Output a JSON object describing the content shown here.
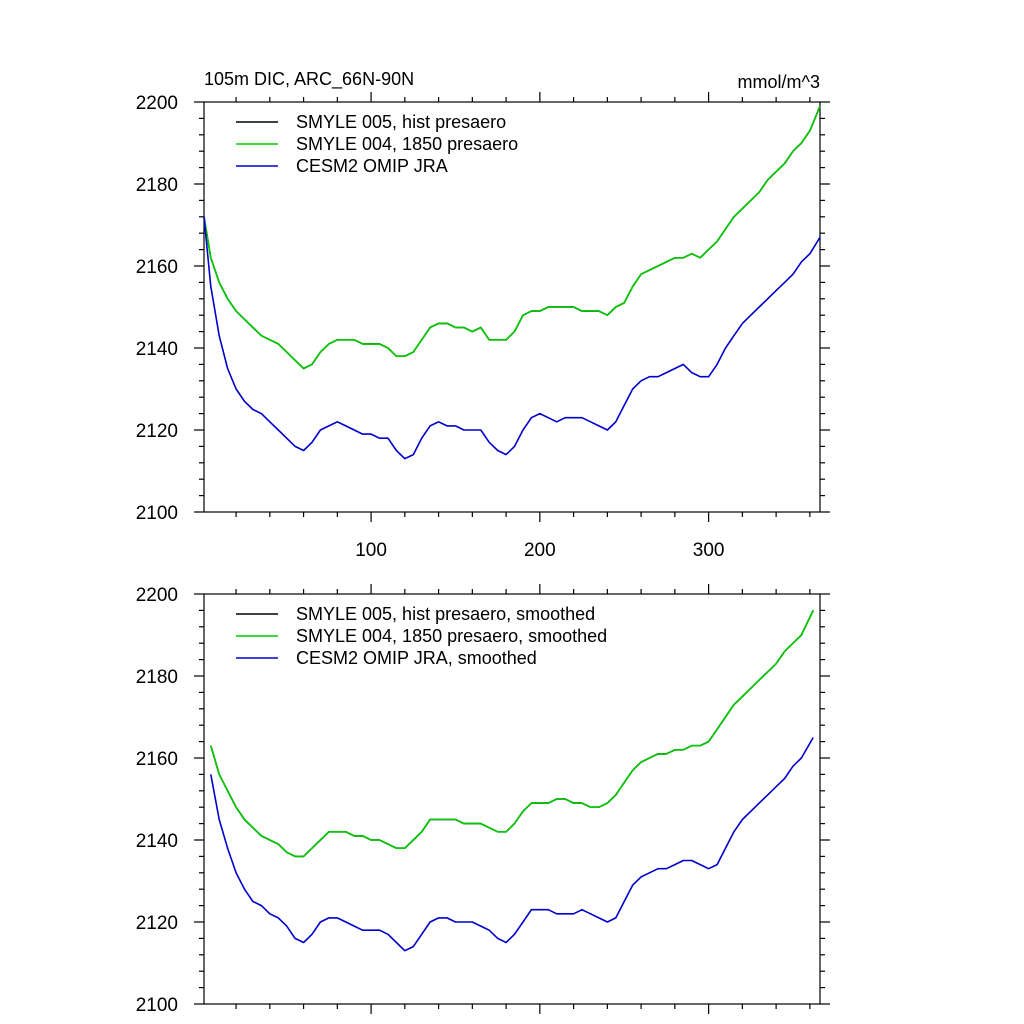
{
  "chart_data": [
    {
      "type": "line",
      "title_left": "105m DIC, ARC_66N-90N",
      "title_right": "mmol/m^3",
      "xlabel": "",
      "ylabel": "",
      "xlim": [
        1,
        366
      ],
      "ylim": [
        2100,
        2200
      ],
      "xticks": [
        100,
        200,
        300
      ],
      "xtick_labels": [
        "100",
        "200",
        "300"
      ],
      "yticks": [
        2100,
        2120,
        2140,
        2160,
        2180,
        2200
      ],
      "ytick_labels": [
        "2100",
        "2120",
        "2140",
        "2160",
        "2180",
        "2200"
      ],
      "legend_position": "top-left",
      "series": [
        {
          "name": "SMYLE 005, hist presaero",
          "color": "#000000",
          "x": [
            1,
            5,
            10,
            15,
            20,
            25,
            30,
            35,
            40,
            45,
            50,
            55,
            60,
            65,
            70,
            75,
            80,
            85,
            90,
            95,
            100,
            105,
            110,
            115,
            120,
            125,
            130,
            135,
            140,
            145,
            150,
            155,
            160,
            165,
            170,
            175,
            180,
            185,
            190,
            195,
            200,
            205,
            210,
            215,
            220,
            225,
            230,
            235,
            240,
            245,
            250,
            255,
            260,
            265,
            270,
            275,
            280,
            285,
            290,
            295,
            300,
            305,
            310,
            315,
            320,
            325,
            330,
            335,
            340,
            345,
            350,
            355,
            360,
            366
          ],
          "values": [
            2172,
            2162,
            2156,
            2152,
            2149,
            2147,
            2145,
            2143,
            2142,
            2141,
            2139,
            2137,
            2135,
            2136,
            2139,
            2141,
            2142,
            2142,
            2142,
            2141,
            2141,
            2141,
            2140,
            2138,
            2138,
            2139,
            2142,
            2145,
            2146,
            2146,
            2145,
            2145,
            2144,
            2145,
            2142,
            2142,
            2142,
            2144,
            2148,
            2149,
            2149,
            2150,
            2150,
            2150,
            2150,
            2149,
            2149,
            2149,
            2148,
            2150,
            2151,
            2155,
            2158,
            2159,
            2160,
            2161,
            2162,
            2162,
            2163,
            2162,
            2164,
            2166,
            2169,
            2172,
            2174,
            2176,
            2178,
            2181,
            2183,
            2185,
            2188,
            2190,
            2193,
            2199
          ]
        },
        {
          "name": "SMYLE 004, 1850 presaero",
          "color": "#00cc00",
          "x": [
            1,
            5,
            10,
            15,
            20,
            25,
            30,
            35,
            40,
            45,
            50,
            55,
            60,
            65,
            70,
            75,
            80,
            85,
            90,
            95,
            100,
            105,
            110,
            115,
            120,
            125,
            130,
            135,
            140,
            145,
            150,
            155,
            160,
            165,
            170,
            175,
            180,
            185,
            190,
            195,
            200,
            205,
            210,
            215,
            220,
            225,
            230,
            235,
            240,
            245,
            250,
            255,
            260,
            265,
            270,
            275,
            280,
            285,
            290,
            295,
            300,
            305,
            310,
            315,
            320,
            325,
            330,
            335,
            340,
            345,
            350,
            355,
            360,
            366
          ],
          "values": [
            2172,
            2162,
            2156,
            2152,
            2149,
            2147,
            2145,
            2143,
            2142,
            2141,
            2139,
            2137,
            2135,
            2136,
            2139,
            2141,
            2142,
            2142,
            2142,
            2141,
            2141,
            2141,
            2140,
            2138,
            2138,
            2139,
            2142,
            2145,
            2146,
            2146,
            2145,
            2145,
            2144,
            2145,
            2142,
            2142,
            2142,
            2144,
            2148,
            2149,
            2149,
            2150,
            2150,
            2150,
            2150,
            2149,
            2149,
            2149,
            2148,
            2150,
            2151,
            2155,
            2158,
            2159,
            2160,
            2161,
            2162,
            2162,
            2163,
            2162,
            2164,
            2166,
            2169,
            2172,
            2174,
            2176,
            2178,
            2181,
            2183,
            2185,
            2188,
            2190,
            2193,
            2199
          ]
        },
        {
          "name": "CESM2 OMIP JRA",
          "color": "#0000cc",
          "x": [
            1,
            5,
            10,
            15,
            20,
            25,
            30,
            35,
            40,
            45,
            50,
            55,
            60,
            65,
            70,
            75,
            80,
            85,
            90,
            95,
            100,
            105,
            110,
            115,
            120,
            125,
            130,
            135,
            140,
            145,
            150,
            155,
            160,
            165,
            170,
            175,
            180,
            185,
            190,
            195,
            200,
            205,
            210,
            215,
            220,
            225,
            230,
            235,
            240,
            245,
            250,
            255,
            260,
            265,
            270,
            275,
            280,
            285,
            290,
            295,
            300,
            305,
            310,
            315,
            320,
            325,
            330,
            335,
            340,
            345,
            350,
            355,
            360,
            366
          ],
          "values": [
            2172,
            2155,
            2143,
            2135,
            2130,
            2127,
            2125,
            2124,
            2122,
            2120,
            2118,
            2116,
            2115,
            2117,
            2120,
            2121,
            2122,
            2121,
            2120,
            2119,
            2119,
            2118,
            2118,
            2115,
            2113,
            2114,
            2118,
            2121,
            2122,
            2121,
            2121,
            2120,
            2120,
            2120,
            2117,
            2115,
            2114,
            2116,
            2120,
            2123,
            2124,
            2123,
            2122,
            2123,
            2123,
            2123,
            2122,
            2121,
            2120,
            2122,
            2126,
            2130,
            2132,
            2133,
            2133,
            2134,
            2135,
            2136,
            2134,
            2133,
            2133,
            2136,
            2140,
            2143,
            2146,
            2148,
            2150,
            2152,
            2154,
            2156,
            2158,
            2161,
            2163,
            2167
          ]
        }
      ]
    },
    {
      "type": "line",
      "title_left": "",
      "title_right": "",
      "xlabel": "",
      "ylabel": "",
      "xlim": [
        1,
        366
      ],
      "ylim": [
        2100,
        2200
      ],
      "xticks": [
        100,
        200,
        300
      ],
      "xtick_labels": [],
      "yticks": [
        2100,
        2120,
        2140,
        2160,
        2180,
        2200
      ],
      "ytick_labels": [
        "2100",
        "2120",
        "2140",
        "2160",
        "2180",
        "2200"
      ],
      "legend_position": "top-left",
      "series": [
        {
          "name": "SMYLE 005, hist presaero, smoothed",
          "color": "#000000",
          "x": [
            5,
            10,
            15,
            20,
            25,
            30,
            35,
            40,
            45,
            50,
            55,
            60,
            65,
            70,
            75,
            80,
            85,
            90,
            95,
            100,
            105,
            110,
            115,
            120,
            125,
            130,
            135,
            140,
            145,
            150,
            155,
            160,
            165,
            170,
            175,
            180,
            185,
            190,
            195,
            200,
            205,
            210,
            215,
            220,
            225,
            230,
            235,
            240,
            245,
            250,
            255,
            260,
            265,
            270,
            275,
            280,
            285,
            290,
            295,
            300,
            305,
            310,
            315,
            320,
            325,
            330,
            335,
            340,
            345,
            350,
            355,
            362
          ],
          "values": [
            2163,
            2156,
            2152,
            2148,
            2145,
            2143,
            2141,
            2140,
            2139,
            2137,
            2136,
            2136,
            2138,
            2140,
            2142,
            2142,
            2142,
            2141,
            2141,
            2140,
            2140,
            2139,
            2138,
            2138,
            2140,
            2142,
            2145,
            2145,
            2145,
            2145,
            2144,
            2144,
            2144,
            2143,
            2142,
            2142,
            2144,
            2147,
            2149,
            2149,
            2149,
            2150,
            2150,
            2149,
            2149,
            2148,
            2148,
            2149,
            2151,
            2154,
            2157,
            2159,
            2160,
            2161,
            2161,
            2162,
            2162,
            2163,
            2163,
            2164,
            2167,
            2170,
            2173,
            2175,
            2177,
            2179,
            2181,
            2183,
            2186,
            2188,
            2190,
            2196
          ]
        },
        {
          "name": "SMYLE 004, 1850 presaero, smoothed",
          "color": "#00cc00",
          "x": [
            5,
            10,
            15,
            20,
            25,
            30,
            35,
            40,
            45,
            50,
            55,
            60,
            65,
            70,
            75,
            80,
            85,
            90,
            95,
            100,
            105,
            110,
            115,
            120,
            125,
            130,
            135,
            140,
            145,
            150,
            155,
            160,
            165,
            170,
            175,
            180,
            185,
            190,
            195,
            200,
            205,
            210,
            215,
            220,
            225,
            230,
            235,
            240,
            245,
            250,
            255,
            260,
            265,
            270,
            275,
            280,
            285,
            290,
            295,
            300,
            305,
            310,
            315,
            320,
            325,
            330,
            335,
            340,
            345,
            350,
            355,
            362
          ],
          "values": [
            2163,
            2156,
            2152,
            2148,
            2145,
            2143,
            2141,
            2140,
            2139,
            2137,
            2136,
            2136,
            2138,
            2140,
            2142,
            2142,
            2142,
            2141,
            2141,
            2140,
            2140,
            2139,
            2138,
            2138,
            2140,
            2142,
            2145,
            2145,
            2145,
            2145,
            2144,
            2144,
            2144,
            2143,
            2142,
            2142,
            2144,
            2147,
            2149,
            2149,
            2149,
            2150,
            2150,
            2149,
            2149,
            2148,
            2148,
            2149,
            2151,
            2154,
            2157,
            2159,
            2160,
            2161,
            2161,
            2162,
            2162,
            2163,
            2163,
            2164,
            2167,
            2170,
            2173,
            2175,
            2177,
            2179,
            2181,
            2183,
            2186,
            2188,
            2190,
            2196
          ]
        },
        {
          "name": "CESM2 OMIP JRA, smoothed",
          "color": "#0000cc",
          "x": [
            5,
            10,
            15,
            20,
            25,
            30,
            35,
            40,
            45,
            50,
            55,
            60,
            65,
            70,
            75,
            80,
            85,
            90,
            95,
            100,
            105,
            110,
            115,
            120,
            125,
            130,
            135,
            140,
            145,
            150,
            155,
            160,
            165,
            170,
            175,
            180,
            185,
            190,
            195,
            200,
            205,
            210,
            215,
            220,
            225,
            230,
            235,
            240,
            245,
            250,
            255,
            260,
            265,
            270,
            275,
            280,
            285,
            290,
            295,
            300,
            305,
            310,
            315,
            320,
            325,
            330,
            335,
            340,
            345,
            350,
            355,
            362
          ],
          "values": [
            2156,
            2145,
            2138,
            2132,
            2128,
            2125,
            2124,
            2122,
            2121,
            2119,
            2116,
            2115,
            2117,
            2120,
            2121,
            2121,
            2120,
            2119,
            2118,
            2118,
            2118,
            2117,
            2115,
            2113,
            2114,
            2117,
            2120,
            2121,
            2121,
            2120,
            2120,
            2120,
            2119,
            2118,
            2116,
            2115,
            2117,
            2120,
            2123,
            2123,
            2123,
            2122,
            2122,
            2122,
            2123,
            2122,
            2121,
            2120,
            2121,
            2125,
            2129,
            2131,
            2132,
            2133,
            2133,
            2134,
            2135,
            2135,
            2134,
            2133,
            2134,
            2138,
            2142,
            2145,
            2147,
            2149,
            2151,
            2153,
            2155,
            2158,
            2160,
            2165
          ]
        }
      ]
    }
  ]
}
